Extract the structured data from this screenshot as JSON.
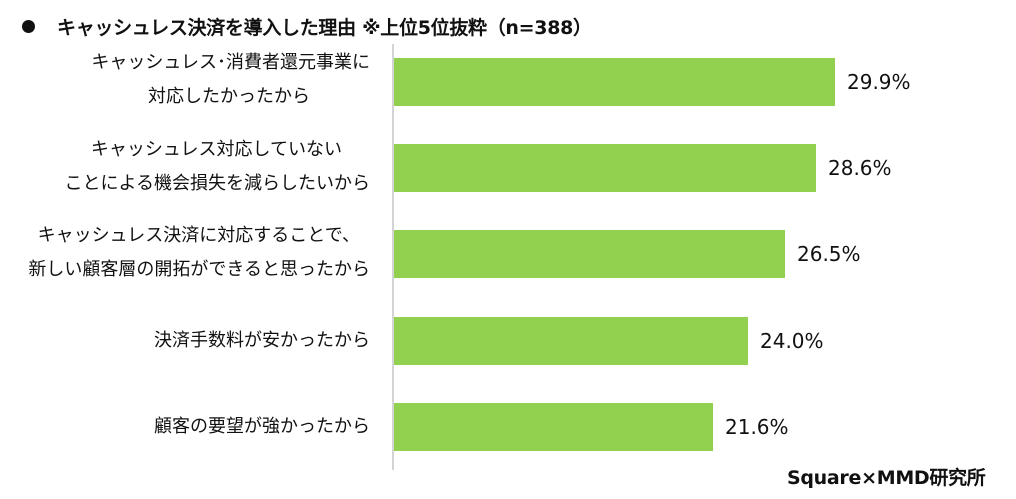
{
  "header": {
    "bullet_icon": "black-circle",
    "title": "キャッシュレス決済を導入した理由 ※上位5位抜粋（n=388）"
  },
  "footer": {
    "source": "Square×MMD研究所"
  },
  "colors": {
    "bar": "#92d050",
    "axis": "#d4d4d4",
    "text": "#111111"
  },
  "chart_data": {
    "type": "bar",
    "orientation": "horizontal",
    "title": "キャッシュレス決済を導入した理由 ※上位5位抜粋（n=388）",
    "xlabel": "",
    "ylabel": "",
    "unit": "%",
    "grid": false,
    "legend": null,
    "categories": [
      "キャッシュレス･消費者還元事業に対応したかったから",
      "キャッシュレス対応していないことによる機会損失を減らしたいから",
      "キャッシュレス決済に対応することで、新しい顧客層の開拓ができると思ったから",
      "決済手数料が安かったから",
      "顧客の要望が強かったから"
    ],
    "category_lines": [
      [
        "キャッシュレス･消費者還元事業に",
        "対応したかったから"
      ],
      [
        "キャッシュレス対応していない",
        "ことによる機会損失を減らしたいから"
      ],
      [
        "キャッシュレス決済に対応することで、",
        "新しい顧客層の開拓ができると思ったから"
      ],
      [
        "決済手数料が安かったから"
      ],
      [
        "顧客の要望が強かったから"
      ]
    ],
    "values": [
      29.9,
      28.6,
      26.5,
      24.0,
      21.6
    ],
    "value_labels": [
      "29.9%",
      "28.6%",
      "26.5%",
      "24.0%",
      "21.6%"
    ],
    "n": 388,
    "source": "Square×MMD研究所"
  }
}
